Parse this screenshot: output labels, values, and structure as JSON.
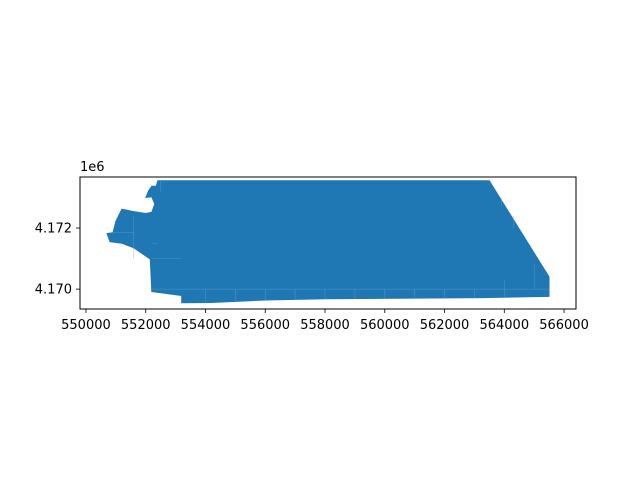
{
  "chart_data": {
    "type": "map",
    "title": "",
    "xlabel": "",
    "ylabel": "",
    "xlim": [
      549800,
      566400
    ],
    "ylim": [
      4169350,
      4173670
    ],
    "x_ticks": [
      550000,
      552000,
      554000,
      556000,
      558000,
      560000,
      562000,
      564000,
      566000
    ],
    "x_tick_labels": [
      "550000",
      "552000",
      "554000",
      "556000",
      "558000",
      "560000",
      "562000",
      "564000",
      "566000"
    ],
    "y_ticks": [
      4170000,
      4172000
    ],
    "y_tick_labels": [
      "4.170",
      "4.172"
    ],
    "y_offset_label": "1e6",
    "grid": false,
    "fill_color": "#1f77b4",
    "edge_color": "#6fa2cc",
    "polygon": [
      [
        552400,
        4173550
      ],
      [
        563500,
        4173550
      ],
      [
        565500,
        4170400
      ],
      [
        565500,
        4169760
      ],
      [
        563300,
        4169720
      ],
      [
        558000,
        4169680
      ],
      [
        556000,
        4169640
      ],
      [
        554200,
        4169560
      ],
      [
        553200,
        4169550
      ],
      [
        553200,
        4169790
      ],
      [
        552200,
        4169920
      ],
      [
        552150,
        4170980
      ],
      [
        551600,
        4171350
      ],
      [
        551200,
        4171500
      ],
      [
        550800,
        4171550
      ],
      [
        550700,
        4171820
      ],
      [
        550900,
        4171850
      ],
      [
        551000,
        4172230
      ],
      [
        551200,
        4172620
      ],
      [
        551600,
        4172540
      ],
      [
        552000,
        4172480
      ],
      [
        552200,
        4172520
      ],
      [
        552300,
        4172780
      ],
      [
        552200,
        4173020
      ],
      [
        552000,
        4173000
      ],
      [
        552100,
        4173230
      ],
      [
        552200,
        4173370
      ],
      [
        552350,
        4173370
      ]
    ],
    "internal_lines": [
      [
        [
          552200,
          4171500
        ],
        [
          552400,
          4171500
        ]
      ],
      [
        [
          552200,
          4171000
        ],
        [
          553200,
          4171000
        ]
      ],
      [
        [
          551600,
          4171000
        ],
        [
          551600,
          4172400
        ]
      ],
      [
        [
          554000,
          4169560
        ],
        [
          554000,
          4170000
        ]
      ],
      [
        [
          555000,
          4169560
        ],
        [
          555000,
          4170000
        ]
      ],
      [
        [
          556000,
          4169640
        ],
        [
          556000,
          4170000
        ]
      ],
      [
        [
          557000,
          4169660
        ],
        [
          557000,
          4170000
        ]
      ],
      [
        [
          558000,
          4169680
        ],
        [
          558000,
          4170000
        ]
      ],
      [
        [
          559000,
          4169690
        ],
        [
          559000,
          4170000
        ]
      ],
      [
        [
          560000,
          4169700
        ],
        [
          560000,
          4170000
        ]
      ],
      [
        [
          561000,
          4169710
        ],
        [
          561000,
          4170000
        ]
      ],
      [
        [
          562000,
          4169715
        ],
        [
          562000,
          4170000
        ]
      ],
      [
        [
          563000,
          4169720
        ],
        [
          563000,
          4170000
        ]
      ],
      [
        [
          564000,
          4169740
        ],
        [
          564000,
          4170300
        ]
      ],
      [
        [
          552200,
          4170000
        ],
        [
          565500,
          4170000
        ]
      ],
      [
        [
          564300,
          4172000
        ],
        [
          564300,
          4172400
        ]
      ],
      [
        [
          563900,
          4173000
        ],
        [
          563900,
          4172700
        ]
      ],
      [
        [
          565000,
          4170000
        ],
        [
          565000,
          4170800
        ]
      ],
      [
        [
          552500,
          4173550
        ],
        [
          552500,
          4173200
        ]
      ],
      [
        [
          550900,
          4171850
        ],
        [
          551600,
          4171850
        ]
      ]
    ]
  }
}
